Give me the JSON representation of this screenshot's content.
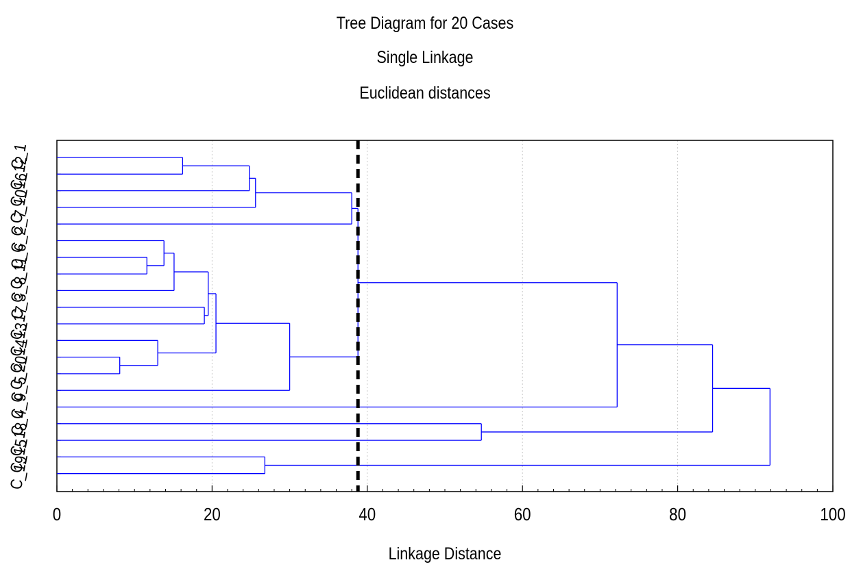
{
  "chart_data": {
    "type": "dendrogram",
    "title": "Tree Diagram for 20 Cases",
    "subtitle_lines": [
      "Single Linkage",
      "Euclidean distances"
    ],
    "xlabel": "Linkage Distance",
    "xlim": [
      0,
      100
    ],
    "x_ticks": [
      0,
      20,
      40,
      60,
      80,
      100
    ],
    "grid": true,
    "leaves": [
      "C_1",
      "C_12",
      "C_16",
      "C_10",
      "C_7",
      "C_2",
      "C_6",
      "C_11",
      "C_8",
      "C_3",
      "C_17",
      "C_13",
      "C_14",
      "C_20",
      "C_5",
      "C_9",
      "C_4",
      "C_18",
      "C_15",
      "C_19"
    ],
    "merges": [
      {
        "left": "C_1",
        "right": "C_12",
        "height": 16.2
      },
      {
        "left": "C_1+C_12",
        "right": "C_16",
        "height": 24.8
      },
      {
        "left": "C_1+C_12+C_16",
        "right": "C_10",
        "height": 25.6
      },
      {
        "left": "C_6",
        "right": "C_11",
        "height": 11.6
      },
      {
        "left": "C_2",
        "right": "C_6+C_11",
        "height": 13.8
      },
      {
        "left": "C_2+C_6+C_11",
        "right": "C_8",
        "height": 15.1
      },
      {
        "left": "C_3",
        "right": "C_17",
        "height": 19.0
      },
      {
        "left": "C_2..C_8",
        "right": "C_3+C_17",
        "height": 19.5
      },
      {
        "left": "C_14",
        "right": "C_20",
        "height": 8.1
      },
      {
        "left": "C_13",
        "right": "C_14+C_20",
        "height": 13.0
      },
      {
        "left": "C_2..C_17",
        "right": "C_13+C_14+C_20",
        "height": 20.5
      },
      {
        "left": "C_2..C_20",
        "right": "C_5",
        "height": 30.0
      },
      {
        "left": "C_1..C_10",
        "right": "C_7",
        "height": 38.0
      },
      {
        "left": "C_1..C_7",
        "right": "C_2..C_5",
        "height": 38.8
      },
      {
        "left": "C_1..C_5",
        "right": "C_9",
        "height": 72.2
      },
      {
        "left": "C_4",
        "right": "C_18",
        "height": 54.7
      },
      {
        "left": "C_1..C_9",
        "right": "C_4+C_18",
        "height": 84.5
      },
      {
        "left": "C_15",
        "right": "C_19",
        "height": 26.8
      },
      {
        "left": "C_1..C_18",
        "right": "C_15+C_19",
        "height": 91.9
      }
    ],
    "cut_line": {
      "x": 38.8,
      "style": "dashed"
    },
    "colors": {
      "tree": "#0000ff",
      "cut": "#000000",
      "grid": "#c8c8c8"
    }
  }
}
